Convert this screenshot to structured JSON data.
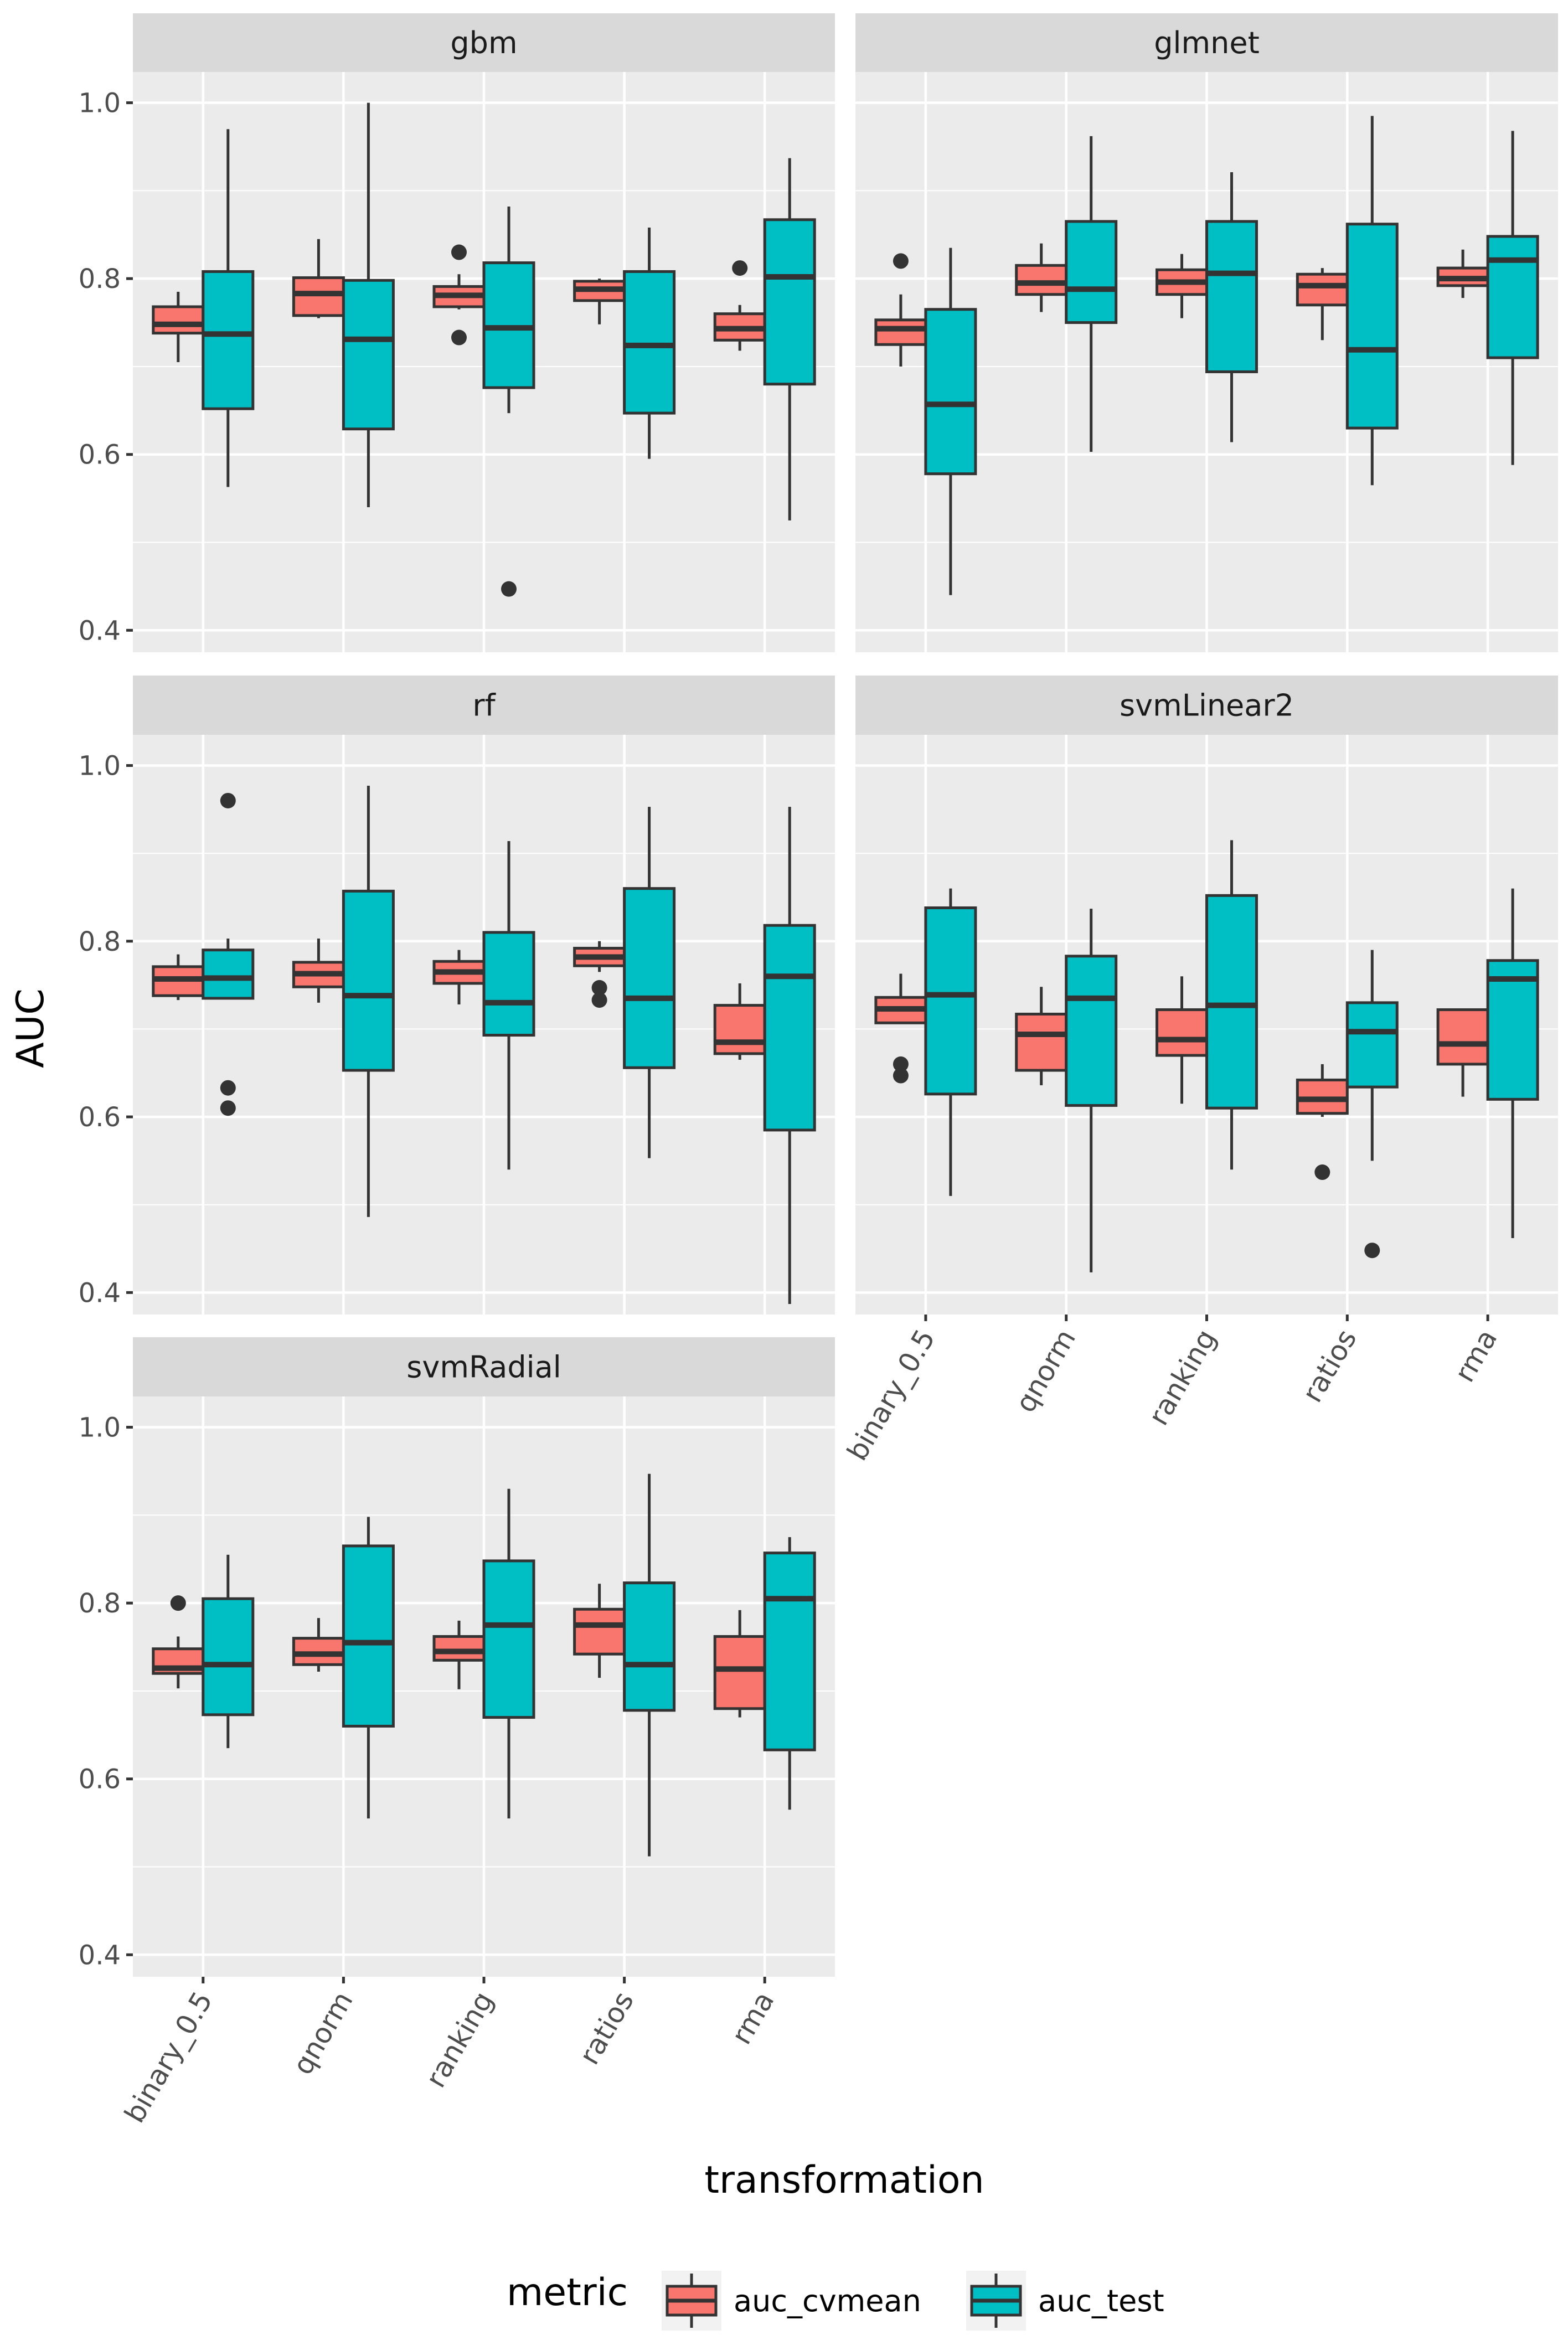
{
  "chart_data": {
    "type": "boxplot",
    "xlabel": "transformation",
    "ylabel": "AUC",
    "categories": [
      "binary_0.5",
      "qnorm",
      "ranking",
      "ratios",
      "rma"
    ],
    "yticks": [
      "0.4",
      "0.6",
      "0.8",
      "1.0"
    ],
    "ylim": [
      0.375,
      1.035
    ],
    "legend": {
      "title": "metric",
      "position": "bottom",
      "entries": [
        {
          "name": "auc_cvmean",
          "color": "#F8766D"
        },
        {
          "name": "auc_test",
          "color": "#00BFC4"
        }
      ]
    },
    "colors": {
      "panel_bg": "#EBEBEB",
      "strip_bg": "#D9D9D9",
      "grid": "#FFFFFF",
      "box_line": "#333333"
    },
    "panels": [
      {
        "name": "gbm",
        "boxes": {
          "auc_cvmean": [
            {
              "low": 0.705,
              "q1": 0.738,
              "median": 0.748,
              "q3": 0.768,
              "high": 0.785,
              "outliers": []
            },
            {
              "low": 0.755,
              "q1": 0.758,
              "median": 0.783,
              "q3": 0.801,
              "high": 0.845,
              "outliers": []
            },
            {
              "low": 0.765,
              "q1": 0.768,
              "median": 0.781,
              "q3": 0.791,
              "high": 0.805,
              "outliers": [
                0.83,
                0.733
              ]
            },
            {
              "low": 0.748,
              "q1": 0.775,
              "median": 0.788,
              "q3": 0.797,
              "high": 0.8,
              "outliers": []
            },
            {
              "low": 0.718,
              "q1": 0.73,
              "median": 0.743,
              "q3": 0.76,
              "high": 0.77,
              "outliers": [
                0.812
              ]
            }
          ],
          "auc_test": [
            {
              "low": 0.563,
              "q1": 0.652,
              "median": 0.737,
              "q3": 0.808,
              "high": 0.97,
              "outliers": []
            },
            {
              "low": 0.54,
              "q1": 0.629,
              "median": 0.731,
              "q3": 0.798,
              "high": 1.0,
              "outliers": []
            },
            {
              "low": 0.647,
              "q1": 0.676,
              "median": 0.744,
              "q3": 0.818,
              "high": 0.882,
              "outliers": [
                0.447
              ]
            },
            {
              "low": 0.595,
              "q1": 0.647,
              "median": 0.724,
              "q3": 0.808,
              "high": 0.858,
              "outliers": []
            },
            {
              "low": 0.525,
              "q1": 0.68,
              "median": 0.802,
              "q3": 0.867,
              "high": 0.937,
              "outliers": []
            }
          ]
        }
      },
      {
        "name": "glmnet",
        "boxes": {
          "auc_cvmean": [
            {
              "low": 0.7,
              "q1": 0.725,
              "median": 0.743,
              "q3": 0.753,
              "high": 0.782,
              "outliers": [
                0.82
              ]
            },
            {
              "low": 0.762,
              "q1": 0.782,
              "median": 0.795,
              "q3": 0.815,
              "high": 0.84,
              "outliers": []
            },
            {
              "low": 0.755,
              "q1": 0.782,
              "median": 0.796,
              "q3": 0.81,
              "high": 0.828,
              "outliers": []
            },
            {
              "low": 0.73,
              "q1": 0.77,
              "median": 0.792,
              "q3": 0.805,
              "high": 0.812,
              "outliers": []
            },
            {
              "low": 0.778,
              "q1": 0.792,
              "median": 0.8,
              "q3": 0.812,
              "high": 0.833,
              "outliers": []
            }
          ],
          "auc_test": [
            {
              "low": 0.44,
              "q1": 0.578,
              "median": 0.657,
              "q3": 0.765,
              "high": 0.835,
              "outliers": []
            },
            {
              "low": 0.603,
              "q1": 0.75,
              "median": 0.788,
              "q3": 0.865,
              "high": 0.962,
              "outliers": []
            },
            {
              "low": 0.614,
              "q1": 0.694,
              "median": 0.806,
              "q3": 0.865,
              "high": 0.921,
              "outliers": []
            },
            {
              "low": 0.565,
              "q1": 0.63,
              "median": 0.719,
              "q3": 0.862,
              "high": 0.985,
              "outliers": []
            },
            {
              "low": 0.588,
              "q1": 0.71,
              "median": 0.821,
              "q3": 0.848,
              "high": 0.968,
              "outliers": []
            }
          ]
        }
      },
      {
        "name": "rf",
        "boxes": {
          "auc_cvmean": [
            {
              "low": 0.733,
              "q1": 0.738,
              "median": 0.757,
              "q3": 0.771,
              "high": 0.785,
              "outliers": []
            },
            {
              "low": 0.73,
              "q1": 0.748,
              "median": 0.763,
              "q3": 0.776,
              "high": 0.803,
              "outliers": []
            },
            {
              "low": 0.728,
              "q1": 0.752,
              "median": 0.765,
              "q3": 0.777,
              "high": 0.79,
              "outliers": []
            },
            {
              "low": 0.765,
              "q1": 0.772,
              "median": 0.782,
              "q3": 0.792,
              "high": 0.8,
              "outliers": [
                0.747,
                0.733
              ]
            },
            {
              "low": 0.665,
              "q1": 0.672,
              "median": 0.685,
              "q3": 0.727,
              "high": 0.752,
              "outliers": []
            }
          ],
          "auc_test": [
            {
              "low": 0.735,
              "q1": 0.735,
              "median": 0.758,
              "q3": 0.79,
              "high": 0.803,
              "outliers": [
                0.96,
                0.633,
                0.61
              ]
            },
            {
              "low": 0.486,
              "q1": 0.653,
              "median": 0.738,
              "q3": 0.857,
              "high": 0.977,
              "outliers": []
            },
            {
              "low": 0.54,
              "q1": 0.693,
              "median": 0.73,
              "q3": 0.81,
              "high": 0.914,
              "outliers": []
            },
            {
              "low": 0.553,
              "q1": 0.656,
              "median": 0.735,
              "q3": 0.86,
              "high": 0.953,
              "outliers": []
            },
            {
              "low": 0.387,
              "q1": 0.585,
              "median": 0.76,
              "q3": 0.818,
              "high": 0.953,
              "outliers": []
            }
          ]
        }
      },
      {
        "name": "svmLinear2",
        "boxes": {
          "auc_cvmean": [
            {
              "low": 0.707,
              "q1": 0.707,
              "median": 0.723,
              "q3": 0.736,
              "high": 0.763,
              "outliers": [
                0.66,
                0.647
              ]
            },
            {
              "low": 0.636,
              "q1": 0.653,
              "median": 0.694,
              "q3": 0.717,
              "high": 0.748,
              "outliers": []
            },
            {
              "low": 0.615,
              "q1": 0.67,
              "median": 0.688,
              "q3": 0.722,
              "high": 0.76,
              "outliers": []
            },
            {
              "low": 0.6,
              "q1": 0.604,
              "median": 0.62,
              "q3": 0.642,
              "high": 0.66,
              "outliers": [
                0.537
              ]
            },
            {
              "low": 0.623,
              "q1": 0.66,
              "median": 0.683,
              "q3": 0.722,
              "high": 0.722,
              "outliers": []
            }
          ],
          "auc_test": [
            {
              "low": 0.51,
              "q1": 0.626,
              "median": 0.739,
              "q3": 0.838,
              "high": 0.86,
              "outliers": []
            },
            {
              "low": 0.423,
              "q1": 0.613,
              "median": 0.735,
              "q3": 0.783,
              "high": 0.837,
              "outliers": []
            },
            {
              "low": 0.54,
              "q1": 0.61,
              "median": 0.727,
              "q3": 0.852,
              "high": 0.915,
              "outliers": []
            },
            {
              "low": 0.55,
              "q1": 0.634,
              "median": 0.697,
              "q3": 0.73,
              "high": 0.79,
              "outliers": [
                0.448
              ]
            },
            {
              "low": 0.462,
              "q1": 0.62,
              "median": 0.757,
              "q3": 0.778,
              "high": 0.86,
              "outliers": []
            }
          ]
        }
      },
      {
        "name": "svmRadial",
        "boxes": {
          "auc_cvmean": [
            {
              "low": 0.703,
              "q1": 0.72,
              "median": 0.726,
              "q3": 0.748,
              "high": 0.762,
              "outliers": [
                0.8
              ]
            },
            {
              "low": 0.722,
              "q1": 0.73,
              "median": 0.742,
              "q3": 0.76,
              "high": 0.783,
              "outliers": []
            },
            {
              "low": 0.702,
              "q1": 0.735,
              "median": 0.745,
              "q3": 0.762,
              "high": 0.78,
              "outliers": []
            },
            {
              "low": 0.715,
              "q1": 0.742,
              "median": 0.775,
              "q3": 0.793,
              "high": 0.822,
              "outliers": []
            },
            {
              "low": 0.67,
              "q1": 0.68,
              "median": 0.725,
              "q3": 0.762,
              "high": 0.792,
              "outliers": []
            }
          ],
          "auc_test": [
            {
              "low": 0.635,
              "q1": 0.673,
              "median": 0.73,
              "q3": 0.805,
              "high": 0.855,
              "outliers": []
            },
            {
              "low": 0.555,
              "q1": 0.66,
              "median": 0.755,
              "q3": 0.865,
              "high": 0.898,
              "outliers": []
            },
            {
              "low": 0.555,
              "q1": 0.67,
              "median": 0.775,
              "q3": 0.848,
              "high": 0.93,
              "outliers": []
            },
            {
              "low": 0.512,
              "q1": 0.678,
              "median": 0.73,
              "q3": 0.823,
              "high": 0.947,
              "outliers": []
            },
            {
              "low": 0.565,
              "q1": 0.633,
              "median": 0.805,
              "q3": 0.857,
              "high": 0.875,
              "outliers": []
            }
          ]
        }
      }
    ]
  }
}
